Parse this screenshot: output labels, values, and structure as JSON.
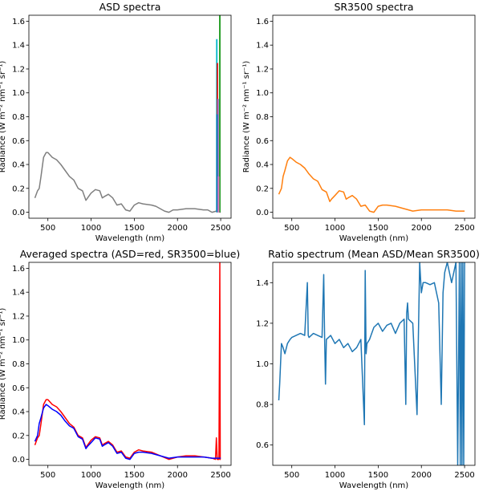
{
  "chart_data": [
    {
      "type": "line",
      "title": "ASD spectra",
      "xlabel": "Wavelength (nm)",
      "ylabel": "Radiance (W m⁻² nm⁻¹ sr⁻¹)",
      "xlim": [
        280,
        2620
      ],
      "ylim": [
        -0.05,
        1.65
      ],
      "xticks": [
        500,
        1000,
        1500,
        2000,
        2500
      ],
      "yticks": [
        0.0,
        0.2,
        0.4,
        0.6,
        0.8,
        1.0,
        1.2,
        1.4,
        1.6
      ],
      "ytick_labels": [
        "0.0",
        "0.2",
        "0.4",
        "0.6",
        "0.8",
        "1.0",
        "1.2",
        "1.4",
        "1.6"
      ],
      "series": [
        {
          "color": "#7f7f7f",
          "x": [
            350,
            380,
            400,
            420,
            450,
            480,
            500,
            550,
            600,
            650,
            700,
            750,
            800,
            850,
            900,
            940,
            960,
            1000,
            1050,
            1100,
            1130,
            1150,
            1200,
            1250,
            1300,
            1350,
            1400,
            1450,
            1500,
            1550,
            1600,
            1700,
            1750,
            1800,
            1850,
            1900,
            1950,
            2000,
            2100,
            2200,
            2300,
            2350,
            2400,
            2450,
            2500
          ],
          "y": [
            0.12,
            0.18,
            0.2,
            0.3,
            0.46,
            0.5,
            0.5,
            0.46,
            0.44,
            0.4,
            0.35,
            0.3,
            0.27,
            0.2,
            0.18,
            0.1,
            0.12,
            0.16,
            0.19,
            0.18,
            0.12,
            0.13,
            0.15,
            0.12,
            0.06,
            0.07,
            0.02,
            0.01,
            0.06,
            0.08,
            0.07,
            0.06,
            0.05,
            0.03,
            0.01,
            0.0,
            0.02,
            0.02,
            0.03,
            0.03,
            0.02,
            0.02,
            0.0,
            0.01,
            0.0
          ]
        },
        {
          "color": "#2ca02c",
          "x": [
            2490,
            2490
          ],
          "y": [
            0.0,
            1.65
          ]
        },
        {
          "color": "#17becf",
          "x": [
            2455,
            2455
          ],
          "y": [
            0.0,
            1.45
          ]
        },
        {
          "color": "#d62728",
          "x": [
            2462,
            2462
          ],
          "y": [
            0.0,
            1.25
          ]
        },
        {
          "color": "#9467bd",
          "x": [
            2470,
            2470
          ],
          "y": [
            0.0,
            0.95
          ]
        },
        {
          "color": "#1f77b4",
          "x": [
            2458,
            2458
          ],
          "y": [
            0.0,
            0.82
          ]
        },
        {
          "color": "#e377c2",
          "x": [
            2475,
            2475
          ],
          "y": [
            0.0,
            0.3
          ]
        }
      ]
    },
    {
      "type": "line",
      "title": "SR3500 spectra",
      "xlabel": "Wavelength (nm)",
      "ylabel": "Radiance (W m⁻² nm⁻¹ sr⁻¹)",
      "xlim": [
        280,
        2620
      ],
      "ylim": [
        -0.05,
        1.65
      ],
      "xticks": [
        500,
        1000,
        1500,
        2000,
        2500
      ],
      "yticks": [
        0.0,
        0.2,
        0.4,
        0.6,
        0.8,
        1.0,
        1.2,
        1.4,
        1.6
      ],
      "ytick_labels": [
        "0.0",
        "0.2",
        "0.4",
        "0.6",
        "0.8",
        "1.0",
        "1.2",
        "1.4",
        "1.6"
      ],
      "series": [
        {
          "color": "#ff7f0e",
          "x": [
            350,
            380,
            400,
            420,
            450,
            480,
            500,
            550,
            600,
            650,
            700,
            750,
            800,
            850,
            900,
            940,
            960,
            1000,
            1050,
            1100,
            1130,
            1150,
            1200,
            1250,
            1300,
            1350,
            1400,
            1450,
            1500,
            1550,
            1600,
            1700,
            1800,
            1900,
            2000,
            2100,
            2200,
            2300,
            2400,
            2500
          ],
          "y": [
            0.15,
            0.2,
            0.3,
            0.35,
            0.43,
            0.46,
            0.45,
            0.42,
            0.4,
            0.37,
            0.32,
            0.28,
            0.26,
            0.19,
            0.17,
            0.09,
            0.11,
            0.14,
            0.18,
            0.17,
            0.11,
            0.12,
            0.14,
            0.11,
            0.05,
            0.06,
            0.01,
            0.0,
            0.05,
            0.06,
            0.06,
            0.05,
            0.03,
            0.01,
            0.02,
            0.02,
            0.02,
            0.02,
            0.01,
            0.01
          ]
        }
      ]
    },
    {
      "type": "line",
      "title": "Averaged spectra (ASD=red, SR3500=blue)",
      "xlabel": "Wavelength (nm)",
      "ylabel": "Radiance (W m⁻² nm⁻¹ sr⁻¹)",
      "xlim": [
        280,
        2620
      ],
      "ylim": [
        -0.05,
        1.65
      ],
      "xticks": [
        500,
        1000,
        1500,
        2000,
        2500
      ],
      "yticks": [
        0.0,
        0.2,
        0.4,
        0.6,
        0.8,
        1.0,
        1.2,
        1.4,
        1.6
      ],
      "ytick_labels": [
        "0.0",
        "0.2",
        "0.4",
        "0.6",
        "0.8",
        "1.0",
        "1.2",
        "1.4",
        "1.6"
      ],
      "series": [
        {
          "color": "#ff0000",
          "x": [
            350,
            380,
            400,
            420,
            450,
            480,
            500,
            550,
            600,
            650,
            700,
            750,
            800,
            850,
            900,
            940,
            960,
            1000,
            1050,
            1100,
            1130,
            1150,
            1200,
            1250,
            1300,
            1350,
            1400,
            1450,
            1500,
            1550,
            1600,
            1700,
            1800,
            1900,
            2000,
            2100,
            2200,
            2300,
            2400,
            2440,
            2450,
            2460,
            2480,
            2490,
            2495,
            2500
          ],
          "y": [
            0.12,
            0.18,
            0.2,
            0.3,
            0.46,
            0.5,
            0.5,
            0.46,
            0.44,
            0.4,
            0.35,
            0.3,
            0.27,
            0.2,
            0.18,
            0.1,
            0.12,
            0.16,
            0.19,
            0.18,
            0.12,
            0.13,
            0.15,
            0.12,
            0.06,
            0.07,
            0.02,
            0.01,
            0.06,
            0.08,
            0.07,
            0.06,
            0.03,
            0.0,
            0.02,
            0.03,
            0.03,
            0.02,
            0.01,
            0.0,
            0.18,
            0.0,
            0.0,
            1.65,
            0.0,
            0.0
          ]
        },
        {
          "color": "#0000ff",
          "x": [
            350,
            380,
            400,
            420,
            450,
            480,
            500,
            550,
            600,
            650,
            700,
            750,
            800,
            850,
            900,
            940,
            960,
            1000,
            1050,
            1100,
            1130,
            1150,
            1200,
            1250,
            1300,
            1350,
            1400,
            1450,
            1500,
            1550,
            1600,
            1700,
            1800,
            1900,
            2000,
            2100,
            2200,
            2300,
            2400,
            2500
          ],
          "y": [
            0.15,
            0.2,
            0.3,
            0.35,
            0.43,
            0.46,
            0.45,
            0.42,
            0.4,
            0.37,
            0.32,
            0.28,
            0.26,
            0.19,
            0.17,
            0.09,
            0.11,
            0.14,
            0.18,
            0.17,
            0.11,
            0.12,
            0.14,
            0.11,
            0.05,
            0.06,
            0.01,
            0.0,
            0.05,
            0.06,
            0.06,
            0.05,
            0.03,
            0.01,
            0.02,
            0.02,
            0.02,
            0.02,
            0.01,
            0.01
          ]
        }
      ]
    },
    {
      "type": "line",
      "title": "Ratio spectrum (Mean ASD/Mean SR3500)",
      "xlabel": "Wavelength (nm)",
      "ylabel": "",
      "xlim": [
        280,
        2620
      ],
      "ylim": [
        0.5,
        1.5
      ],
      "xticks": [
        500,
        1000,
        1500,
        2000,
        2500
      ],
      "yticks": [
        0.6,
        0.8,
        1.0,
        1.2,
        1.4
      ],
      "ytick_labels": [
        "0.6",
        "0.8",
        "1.0",
        "1.2",
        "1.4"
      ],
      "series": [
        {
          "color": "#1f77b4",
          "x": [
            350,
            360,
            370,
            380,
            400,
            420,
            450,
            480,
            500,
            550,
            600,
            650,
            680,
            690,
            700,
            750,
            800,
            850,
            870,
            880,
            890,
            900,
            950,
            1000,
            1050,
            1100,
            1150,
            1200,
            1250,
            1300,
            1340,
            1350,
            1360,
            1370,
            1400,
            1450,
            1500,
            1550,
            1600,
            1650,
            1700,
            1750,
            1800,
            1820,
            1830,
            1840,
            1850,
            1900,
            1950,
            1980,
            2000,
            2020,
            2050,
            2100,
            2150,
            2200,
            2230,
            2250,
            2270,
            2300,
            2350,
            2400,
            2420,
            2440,
            2450,
            2460,
            2470,
            2480,
            2490,
            2500
          ],
          "y": [
            0.82,
            0.9,
            1.0,
            1.1,
            1.08,
            1.05,
            1.1,
            1.12,
            1.13,
            1.14,
            1.15,
            1.14,
            1.4,
            1.14,
            1.13,
            1.15,
            1.14,
            1.13,
            1.44,
            1.13,
            0.9,
            1.12,
            1.14,
            1.1,
            1.12,
            1.08,
            1.1,
            1.06,
            1.08,
            1.12,
            0.7,
            1.46,
            1.05,
            1.1,
            1.12,
            1.18,
            1.2,
            1.16,
            1.19,
            1.2,
            1.15,
            1.2,
            1.22,
            0.8,
            1.25,
            1.3,
            1.22,
            1.2,
            0.75,
            1.5,
            1.35,
            1.4,
            1.4,
            1.39,
            1.4,
            1.3,
            0.8,
            1.35,
            1.45,
            1.5,
            1.4,
            1.5,
            0.5,
            1.5,
            0.5,
            1.5,
            0.5,
            1.5,
            0.5,
            1.5
          ]
        }
      ]
    }
  ]
}
